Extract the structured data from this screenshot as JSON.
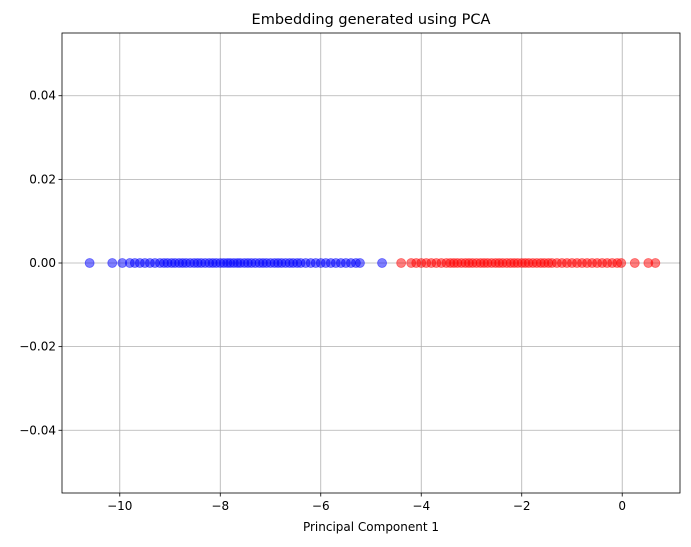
{
  "chart_data": {
    "type": "scatter",
    "title": "Embedding generated using PCA",
    "xlabel": "Principal Component 1",
    "ylabel": "",
    "xlim": [
      -11.15,
      1.15
    ],
    "ylim": [
      -0.055,
      0.055
    ],
    "grid": true,
    "x_ticks": [
      {
        "value": -10,
        "label": "−10"
      },
      {
        "value": -8,
        "label": "−8"
      },
      {
        "value": -6,
        "label": "−6"
      },
      {
        "value": -4,
        "label": "−4"
      },
      {
        "value": -2,
        "label": "−2"
      },
      {
        "value": 0,
        "label": "0"
      }
    ],
    "y_ticks": [
      {
        "value": 0.04,
        "label": "0.04"
      },
      {
        "value": 0.02,
        "label": "0.02"
      },
      {
        "value": 0.0,
        "label": "0.00"
      },
      {
        "value": -0.02,
        "label": "−0.02"
      },
      {
        "value": -0.04,
        "label": "−0.04"
      }
    ],
    "series": [
      {
        "color": "#0000ff",
        "alpha": 0.5,
        "points_x": [
          -10.6,
          -10.15,
          -9.95,
          -9.8,
          -9.7,
          -9.6,
          -9.5,
          -9.4,
          -9.3,
          -9.2,
          -9.12,
          -9.05,
          -8.97,
          -8.9,
          -8.82,
          -8.75,
          -8.68,
          -8.6,
          -8.52,
          -8.45,
          -8.38,
          -8.3,
          -8.22,
          -8.15,
          -8.08,
          -8.0,
          -7.93,
          -7.86,
          -7.8,
          -7.73,
          -7.66,
          -7.6,
          -7.52,
          -7.45,
          -7.38,
          -7.3,
          -7.22,
          -7.15,
          -7.08,
          -7.0,
          -6.92,
          -6.85,
          -6.78,
          -6.7,
          -6.62,
          -6.55,
          -6.47,
          -6.4,
          -6.3,
          -6.2,
          -6.1,
          -6.0,
          -5.9,
          -5.8,
          -5.7,
          -5.6,
          -5.5,
          -5.4,
          -5.3,
          -5.22,
          -4.78
        ],
        "y": 0.0
      },
      {
        "color": "#ff0000",
        "alpha": 0.5,
        "points_x": [
          -4.4,
          -4.2,
          -4.1,
          -4.0,
          -3.9,
          -3.8,
          -3.7,
          -3.6,
          -3.5,
          -3.42,
          -3.35,
          -3.28,
          -3.2,
          -3.12,
          -3.05,
          -2.98,
          -2.9,
          -2.82,
          -2.75,
          -2.68,
          -2.6,
          -2.52,
          -2.45,
          -2.38,
          -2.3,
          -2.22,
          -2.15,
          -2.08,
          -2.0,
          -1.93,
          -1.86,
          -1.78,
          -1.7,
          -1.62,
          -1.55,
          -1.47,
          -1.4,
          -1.3,
          -1.2,
          -1.1,
          -1.0,
          -0.9,
          -0.8,
          -0.7,
          -0.6,
          -0.5,
          -0.4,
          -0.3,
          -0.2,
          -0.1,
          -0.02,
          0.25,
          0.52,
          0.66
        ],
        "y": 0.0
      }
    ]
  }
}
